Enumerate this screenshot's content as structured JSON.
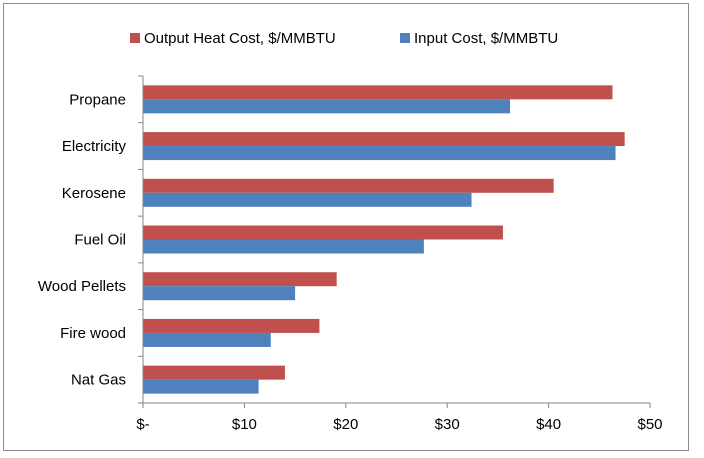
{
  "chart_data": {
    "type": "bar",
    "orientation": "horizontal",
    "categories": [
      "Propane",
      "Electricity",
      "Kerosene",
      "Fuel Oil",
      "Wood Pellets",
      "Fire wood",
      "Nat Gas"
    ],
    "series": [
      {
        "name": "Output Heat Cost, $/MMBTU",
        "color": "#c0504d",
        "values": [
          46.3,
          47.5,
          40.5,
          35.5,
          19.1,
          17.4,
          14.0
        ]
      },
      {
        "name": "Input Cost, $/MMBTU",
        "color": "#4f81bd",
        "values": [
          36.2,
          46.6,
          32.4,
          27.7,
          15.0,
          12.6,
          11.4
        ]
      }
    ],
    "x_ticks": [
      0,
      10,
      20,
      30,
      40,
      50
    ],
    "x_tick_labels": [
      "$-",
      "$10",
      "$20",
      "$30",
      "$40",
      "$50"
    ],
    "xlim": [
      0,
      50
    ],
    "grid": false,
    "legend_position": "top",
    "title": "",
    "xlabel": "",
    "ylabel": ""
  }
}
